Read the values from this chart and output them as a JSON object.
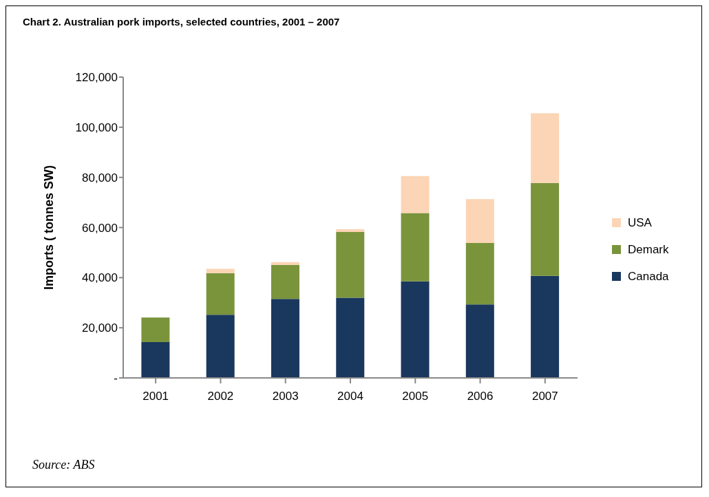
{
  "chart_data": {
    "type": "bar",
    "title": "Chart 2. Australian pork imports, selected countries, 2001 – 2007",
    "ylabel": "Imports ( tonnes SW)",
    "annotations": [
      "Source: ABS"
    ],
    "categories": [
      "2001",
      "2002",
      "2003",
      "2004",
      "2005",
      "2006",
      "2007"
    ],
    "stacked": true,
    "series": [
      {
        "name": "Canada",
        "color": "#1a375e",
        "values": [
          14300,
          25200,
          31500,
          32000,
          38500,
          29300,
          40700
        ]
      },
      {
        "name": "Demark",
        "color": "#7a943c",
        "values": [
          9800,
          16600,
          13600,
          26200,
          27300,
          24500,
          37100
        ]
      },
      {
        "name": "USA",
        "color": "#fbd5b5",
        "values": [
          null,
          1700,
          1100,
          1100,
          14700,
          17500,
          27800
        ]
      }
    ],
    "ylim": [
      0,
      120000
    ],
    "yticks": [
      {
        "value": 0,
        "label": "-"
      },
      {
        "value": 20000,
        "label": "20,000"
      },
      {
        "value": 40000,
        "label": "40,000"
      },
      {
        "value": 60000,
        "label": "60,000"
      },
      {
        "value": 80000,
        "label": "80,000"
      },
      {
        "value": 100000,
        "label": "100,000"
      },
      {
        "value": 120000,
        "label": "120,000"
      }
    ],
    "grid": false,
    "legend": "right"
  }
}
